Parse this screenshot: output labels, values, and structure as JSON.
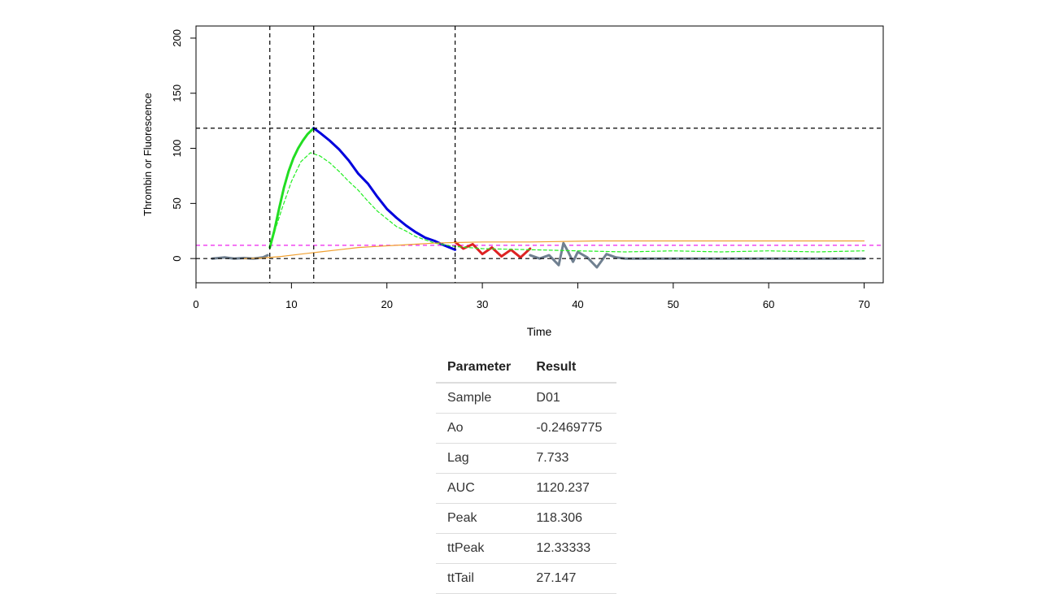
{
  "chart_data": {
    "type": "line",
    "title": "",
    "xlabel": "Time",
    "ylabel": "Thrombin or Fluorescence",
    "xlim": [
      0,
      72
    ],
    "ylim": [
      -22,
      211
    ],
    "x_ticks": [
      0,
      10,
      20,
      30,
      40,
      50,
      60,
      70
    ],
    "y_ticks": [
      0,
      50,
      100,
      150,
      200
    ],
    "x_tick_labels": [
      "0",
      "10",
      "20",
      "30",
      "40",
      "50",
      "60",
      "70"
    ],
    "y_tick_labels": [
      "0",
      "50",
      "100",
      "150",
      "200"
    ],
    "grid": false,
    "legend": "none",
    "reference_lines": {
      "vertical": [
        7.733,
        12.33333,
        27.147
      ],
      "horizontal": [
        0,
        118.306
      ],
      "threshold": 12
    },
    "series": [
      {
        "role": "baseline",
        "color": "#708090",
        "x": [
          1.7,
          3,
          4,
          5,
          6,
          7,
          7.5
        ],
        "y": [
          0,
          1,
          0,
          0.5,
          0,
          1,
          3
        ]
      },
      {
        "role": "rise",
        "color": "#22dd22",
        "x": [
          7.733,
          8.2,
          8.7,
          9.2,
          9.7,
          10.2,
          10.7,
          11.2,
          11.7,
          12.33333
        ],
        "y": [
          10,
          25,
          45,
          64,
          79,
          91,
          100,
          107,
          113,
          118.306
        ]
      },
      {
        "role": "decay",
        "color": "#0000dd",
        "x": [
          12.33333,
          13,
          14,
          15,
          16,
          17,
          18,
          19,
          20,
          21,
          22,
          23,
          24,
          25,
          26,
          27.147
        ],
        "y": [
          118.306,
          114,
          107,
          99,
          89,
          77,
          68,
          56,
          45,
          37,
          30,
          24,
          19,
          16,
          12,
          8
        ]
      },
      {
        "role": "tail",
        "color": "#dd2222",
        "x": [
          27.147,
          28,
          29,
          30,
          31,
          32,
          33,
          34,
          35
        ],
        "y": [
          15,
          9,
          13,
          4,
          10,
          2,
          8,
          1,
          9
        ]
      },
      {
        "role": "noise",
        "color": "#708090",
        "x": [
          35,
          36,
          37,
          38,
          38.5,
          39,
          39.5,
          40,
          41,
          42,
          43,
          44,
          45,
          50,
          55,
          60,
          65,
          70
        ],
        "y": [
          3,
          0,
          3,
          -6,
          14,
          6,
          -3,
          6,
          1,
          -8,
          4,
          1,
          0,
          0,
          0,
          0,
          0,
          0
        ]
      },
      {
        "role": "fluorescence-trace",
        "color": "#22ee22",
        "style": "dashed",
        "x": [
          7.7,
          9,
          10,
          11,
          12,
          13,
          14,
          15,
          16,
          17,
          18,
          19,
          20,
          21,
          22,
          23,
          24,
          25,
          27,
          30,
          35,
          40,
          45,
          50,
          55,
          60,
          65,
          70
        ],
        "y": [
          10,
          45,
          70,
          88,
          96,
          93,
          87,
          79,
          70,
          62,
          52,
          43,
          36,
          29,
          25,
          20,
          17,
          14,
          11,
          9,
          8,
          7,
          6,
          7,
          6,
          7,
          6,
          7
        ]
      },
      {
        "role": "cumulative",
        "color": "#f0a030",
        "x": [
          5,
          7,
          9,
          11,
          13,
          15,
          17,
          19,
          21,
          23,
          25,
          27,
          30,
          35,
          42,
          50,
          60,
          70
        ],
        "y": [
          0,
          0.5,
          2,
          4,
          6,
          8,
          10,
          11,
          12,
          13,
          14,
          14.5,
          15,
          15,
          16,
          16,
          16,
          16
        ]
      }
    ]
  },
  "results_table": {
    "header": [
      "Parameter",
      "Result"
    ],
    "rows": [
      [
        "Sample",
        "D01"
      ],
      [
        "Ao",
        "-0.2469775"
      ],
      [
        "Lag",
        "7.733"
      ],
      [
        "AUC",
        "1120.237"
      ],
      [
        "Peak",
        "118.306"
      ],
      [
        "ttPeak",
        "12.33333"
      ],
      [
        "ttTail",
        "27.147"
      ]
    ]
  }
}
